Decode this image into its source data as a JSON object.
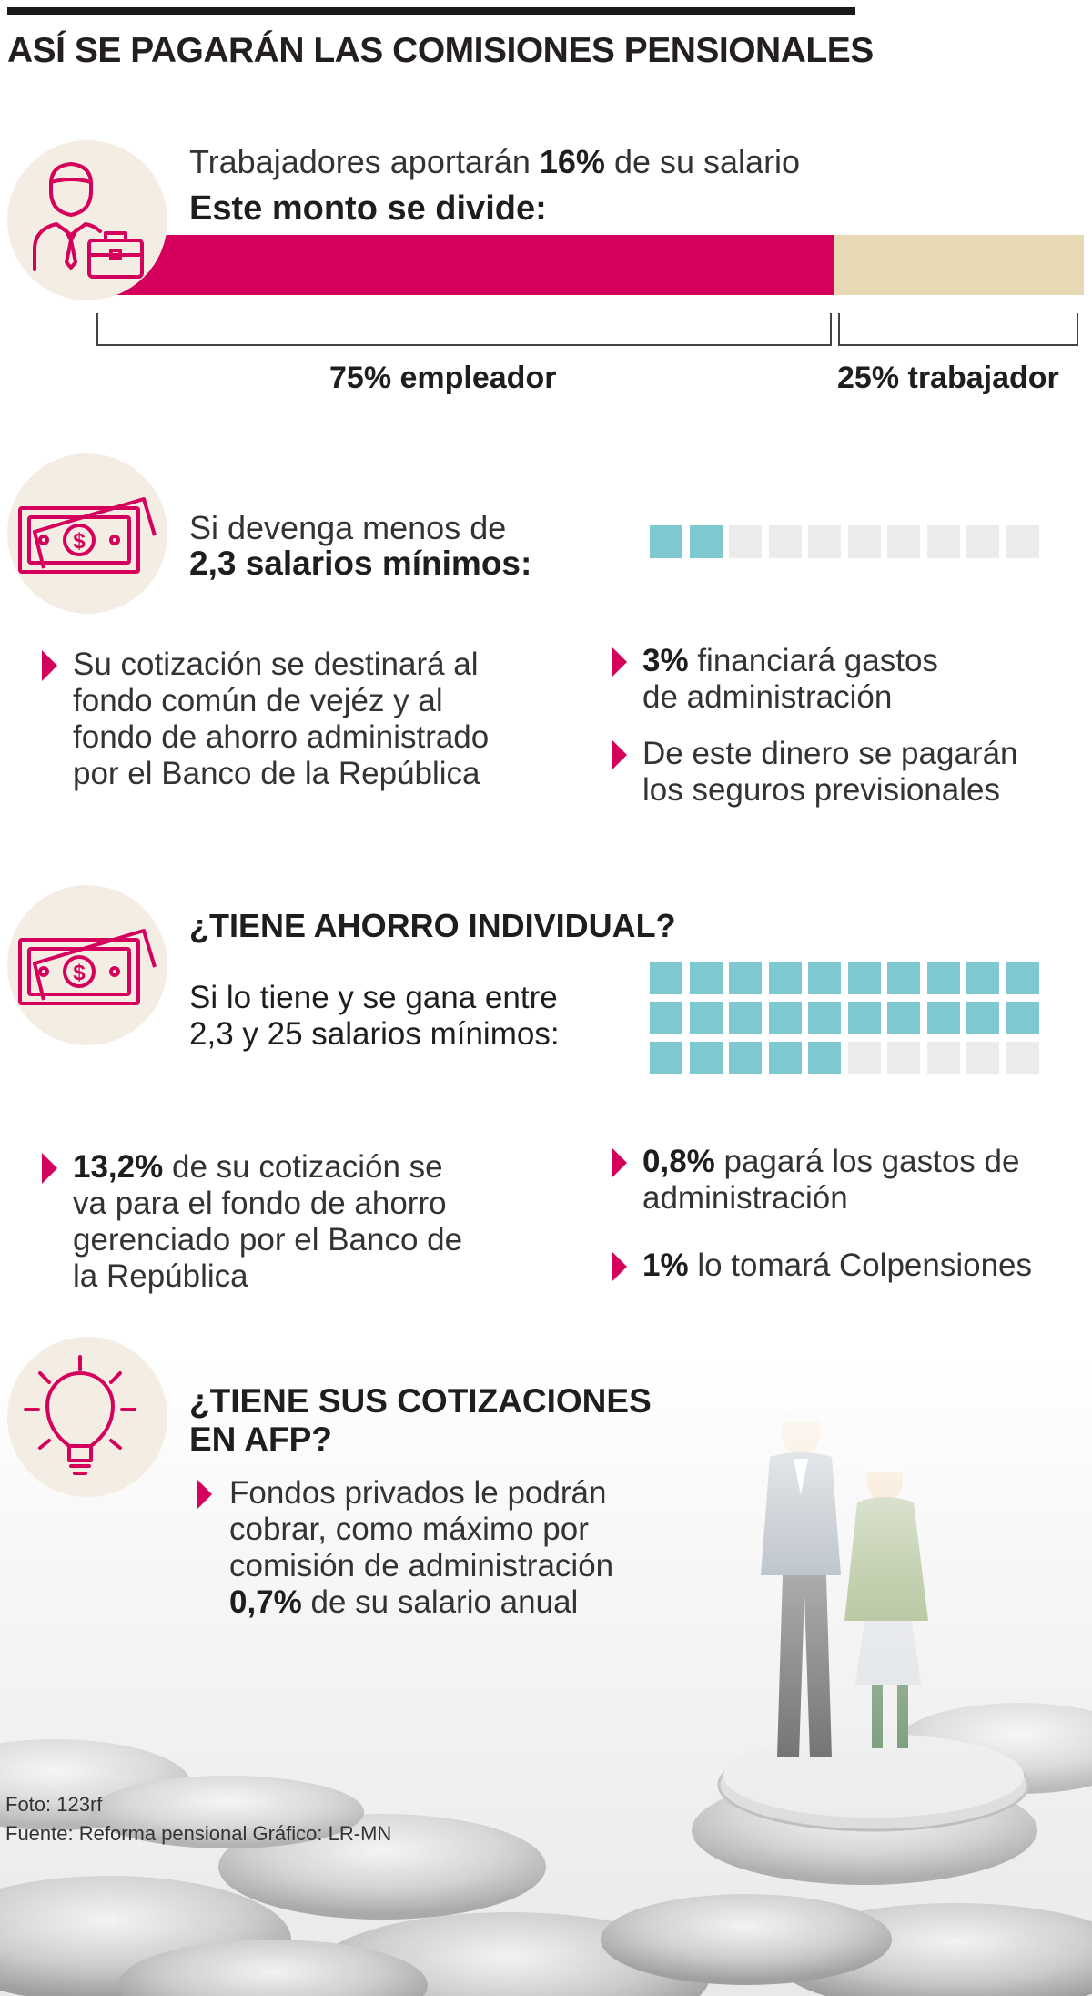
{
  "title": "ASÍ SE PAGARÁN LAS COMISIONES PENSIONALES",
  "colors": {
    "accent": "#d5005b",
    "beige": "#e8d9b5",
    "teal": "#7ec8cf",
    "grey": "#ececec",
    "circle_bg": "#f4ede4"
  },
  "section1": {
    "icon": "worker-with-briefcase-icon",
    "line1_pre": "Trabajadores aportarán ",
    "line1_bold": "16%",
    "line1_post": " de su salario",
    "line2": "Este monto se divide:",
    "split": [
      {
        "label": "75% empleador",
        "value": 75,
        "color": "#d5005b"
      },
      {
        "label": "25% trabajador",
        "value": 25,
        "color": "#e8d9b5"
      }
    ]
  },
  "section2": {
    "icon": "money-bill-icon",
    "line1": "Si devenga menos de",
    "line2": "2,3 salarios mínimos:",
    "squares_filled": 2,
    "squares_total": 10,
    "left_bullet": [
      "Su cotización se destinará al",
      "fondo común de vejéz y al",
      "fondo de ahorro administrado",
      "por el Banco de la República"
    ],
    "right_bullets": [
      {
        "bold": "3%",
        "rest": " financiará gastos",
        "line2": "de administración"
      },
      {
        "bold": "",
        "rest": "De este dinero se pagarán",
        "line2": "los seguros previsionales"
      }
    ]
  },
  "section3": {
    "icon": "money-bill-icon",
    "heading": "¿TIENE AHORRO INDIVIDUAL?",
    "line1": "Si lo tiene y se gana entre",
    "line2": "2,3 y 25 salarios mínimos:",
    "squares_filled": 25,
    "squares_total": 30,
    "left_bullet": {
      "bold": "13,2%",
      "rest": " de su cotización se",
      "lines": [
        "va para el fondo de ahorro",
        "gerenciado por el Banco de",
        "la República"
      ]
    },
    "right_bullets": [
      {
        "bold": "0,8%",
        "rest": " pagará los gastos de",
        "line2": "administración"
      },
      {
        "bold": "1%",
        "rest": " lo tomará Colpensiones",
        "line2": ""
      }
    ]
  },
  "section4": {
    "icon": "light-bulb-icon",
    "heading_line1": "¿TIENE SUS COTIZACIONES",
    "heading_line2": "EN AFP?",
    "bullet_lines": [
      "Fondos privados le podrán",
      "cobrar, como máximo por",
      "comisión de administración"
    ],
    "bullet_last_bold": "0,7%",
    "bullet_last_rest": " de su salario anual"
  },
  "credits": {
    "photo": "Foto: 123rf",
    "source": "Fuente: Reforma pensional Gráfico: LR-MN"
  }
}
